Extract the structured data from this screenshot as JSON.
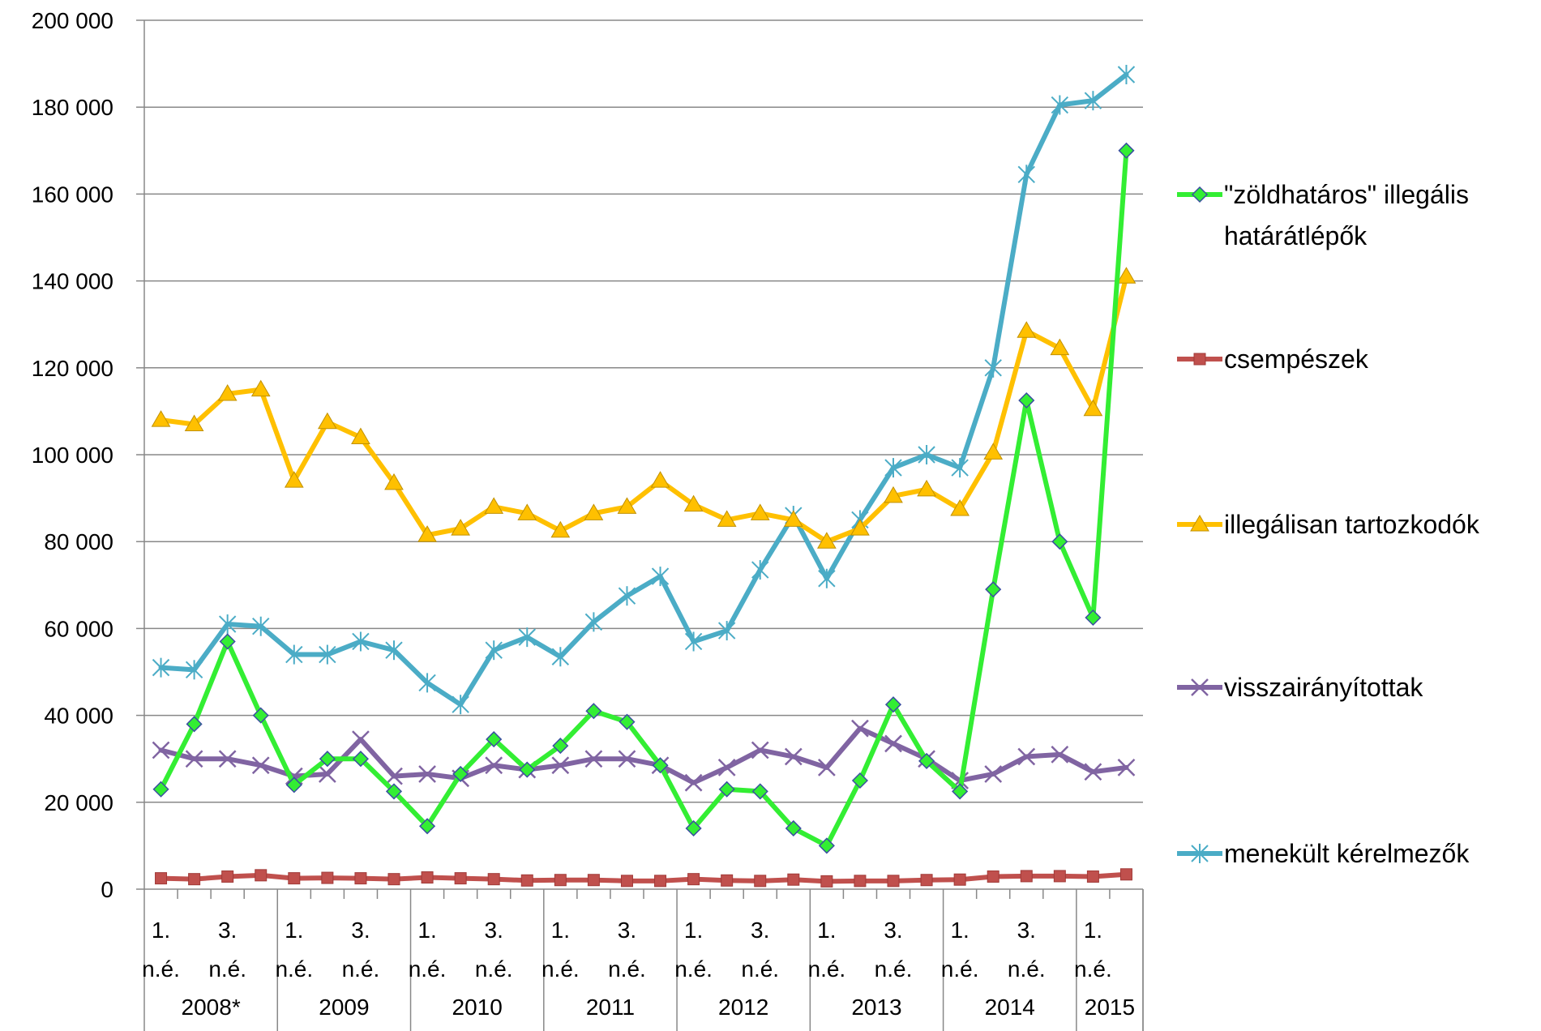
{
  "chart_data": {
    "type": "line",
    "title": "",
    "xlabel": "",
    "ylabel": "",
    "ylim": [
      0,
      200000
    ],
    "yticks": [
      0,
      20000,
      40000,
      60000,
      80000,
      100000,
      120000,
      140000,
      160000,
      180000,
      200000
    ],
    "ytick_labels": [
      "0",
      "20 000",
      "40 000",
      "60 000",
      "80 000",
      "100 000",
      "120 000",
      "140 000",
      "160 000",
      "180 000",
      "200 000"
    ],
    "grid": "horizontal",
    "legend_position": "right",
    "quarter_labels": [
      "1. n.é.",
      "",
      "3. n.é.",
      ""
    ],
    "years": [
      "2008*",
      "2009",
      "2010",
      "2011",
      "2012",
      "2013",
      "2014",
      "2015"
    ],
    "categories": [
      "2008* 1.",
      "2008* 2.",
      "2008* 3.",
      "2008* 4.",
      "2009 1.",
      "2009 2.",
      "2009 3.",
      "2009 4.",
      "2010 1.",
      "2010 2.",
      "2010 3.",
      "2010 4.",
      "2011 1.",
      "2011 2.",
      "2011 3.",
      "2011 4.",
      "2012 1.",
      "2012 2.",
      "2012 3.",
      "2012 4.",
      "2013 1.",
      "2013 2.",
      "2013 3.",
      "2013 4.",
      "2014 1.",
      "2014 2.",
      "2014 3.",
      "2014 4.",
      "2015 1.",
      "2015 2."
    ],
    "series": [
      {
        "name": "\"zöldhatáros\" illegális határátlépők",
        "color": "#33ee33",
        "marker": "diamond",
        "values": [
          23000,
          38000,
          57000,
          40000,
          24000,
          30000,
          30000,
          22500,
          14500,
          26500,
          34500,
          27500,
          33000,
          41000,
          38500,
          28500,
          14000,
          23000,
          22500,
          14000,
          10000,
          25000,
          42500,
          29500,
          22500,
          69000,
          112500,
          80000,
          62500,
          170000
        ]
      },
      {
        "name": "csempészek",
        "color": "#c0504d",
        "marker": "square",
        "values": [
          2500,
          2300,
          2900,
          3200,
          2500,
          2600,
          2500,
          2300,
          2700,
          2500,
          2300,
          2000,
          2100,
          2100,
          1900,
          1900,
          2300,
          2000,
          1900,
          2200,
          1800,
          1900,
          1900,
          2100,
          2200,
          2900,
          3000,
          3000,
          2900,
          3400
        ]
      },
      {
        "name": "illegálisan tartozkodók",
        "color": "#ffc000",
        "marker": "triangle",
        "values": [
          108000,
          107000,
          114000,
          115000,
          94000,
          107500,
          104000,
          93500,
          81500,
          83000,
          88000,
          86500,
          82500,
          86500,
          88000,
          94000,
          88500,
          85000,
          86500,
          85000,
          80000,
          83000,
          90500,
          92000,
          87500,
          100500,
          128500,
          124500,
          110500,
          141000
        ]
      },
      {
        "name": "visszairányítottak",
        "color": "#8064a2",
        "marker": "x",
        "values": [
          32000,
          30000,
          30000,
          28500,
          26000,
          26500,
          34500,
          26000,
          26500,
          25500,
          28500,
          27500,
          28500,
          30000,
          30000,
          28500,
          24500,
          28000,
          32000,
          30500,
          28000,
          37000,
          33500,
          30000,
          25000,
          26500,
          30500,
          31000,
          27000,
          28000
        ]
      },
      {
        "name": "menekült kérelmezők",
        "color": "#4bacc6",
        "marker": "star",
        "values": [
          51000,
          50500,
          61000,
          60500,
          54000,
          54000,
          57000,
          55000,
          47500,
          42500,
          55000,
          58000,
          53500,
          61500,
          67500,
          72000,
          57000,
          59500,
          73500,
          86000,
          71500,
          85000,
          97000,
          100000,
          97000,
          120000,
          164500,
          180500,
          181500,
          187500
        ]
      }
    ]
  }
}
